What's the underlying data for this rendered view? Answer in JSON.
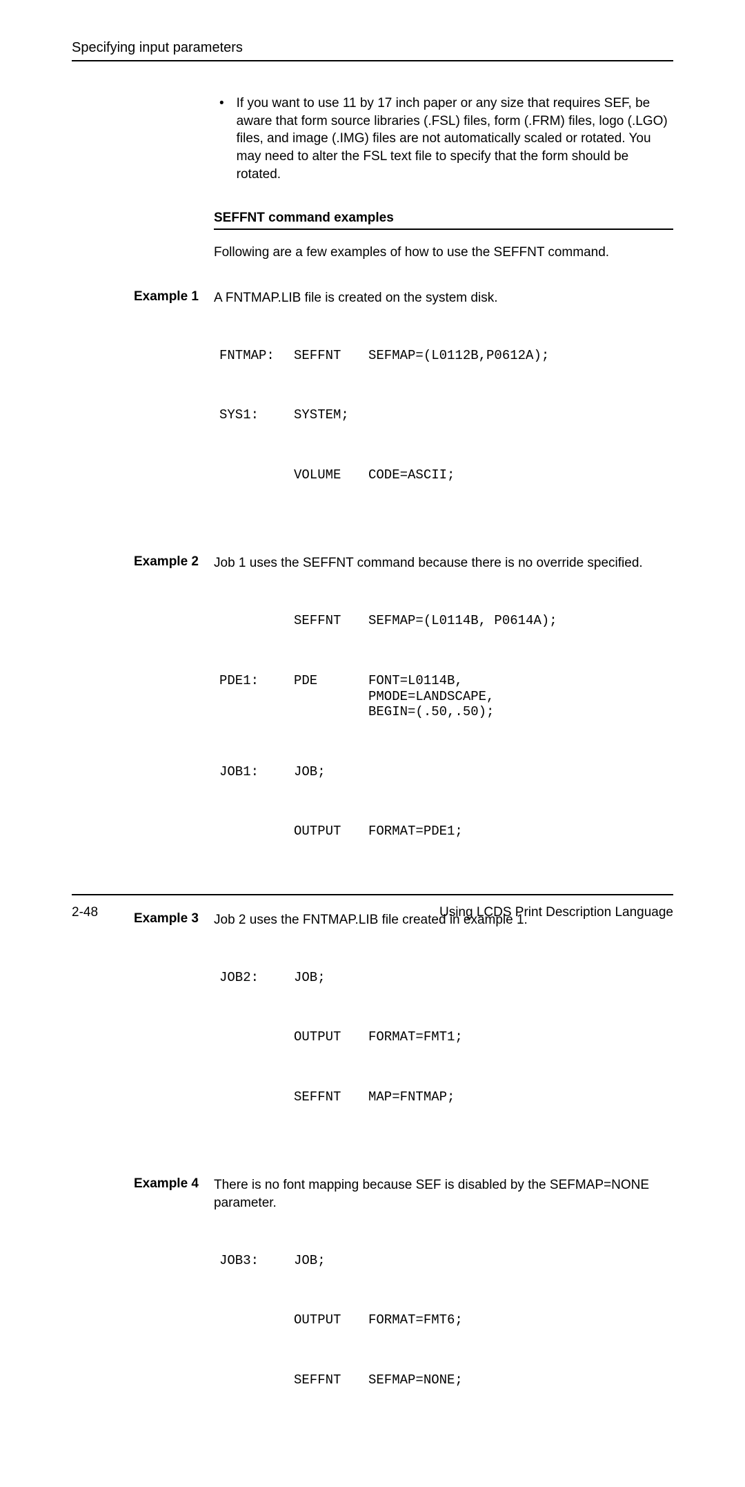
{
  "header": {
    "title": "Specifying input parameters"
  },
  "bullet": {
    "text": "If you want to use 11 by 17 inch paper or any size that requires SEF, be aware that form source libraries (.FSL) files, form (.FRM) files, logo (.LGO) files, and image (.IMG) files are not automatically scaled or rotated. You may need to alter the FSL text file to specify that the form should be rotated."
  },
  "section": {
    "heading": "SEFFNT command examples",
    "intro": "Following are a few examples of how to use the SEFFNT command."
  },
  "examples": {
    "ex1": {
      "label": "Example 1",
      "desc": "A FNTMAP.LIB file is created on the system disk.",
      "rows": [
        {
          "c1": "FNTMAP:",
          "c2": "SEFFNT",
          "c3": "SEFMAP=(L0112B,P0612A);"
        },
        {
          "c1": "SYS1:",
          "c2": "SYSTEM;",
          "c3": ""
        },
        {
          "c1": "",
          "c2": "VOLUME",
          "c3": "CODE=ASCII;"
        }
      ]
    },
    "ex2": {
      "label": "Example 2",
      "desc": "Job 1 uses the SEFFNT command because there is no override specified.",
      "rows": [
        {
          "c1": "",
          "c2": "SEFFNT",
          "c3": "SEFMAP=(L0114B, P0614A);"
        },
        {
          "c1": "PDE1:",
          "c2": "PDE",
          "c3": "FONT=L0114B,\nPMODE=LANDSCAPE,\nBEGIN=(.50,.50);"
        },
        {
          "c1": "JOB1:",
          "c2": "JOB;",
          "c3": ""
        },
        {
          "c1": "",
          "c2": "OUTPUT",
          "c3": "FORMAT=PDE1;"
        }
      ]
    },
    "ex3": {
      "label": "Example 3",
      "desc": "Job 2 uses the FNTMAP.LIB file created in example 1.",
      "rows": [
        {
          "c1": "JOB2:",
          "c2": "JOB;",
          "c3": ""
        },
        {
          "c1": "",
          "c2": "OUTPUT",
          "c3": "FORMAT=FMT1;"
        },
        {
          "c1": "",
          "c2": "SEFFNT",
          "c3": "MAP=FNTMAP;"
        }
      ]
    },
    "ex4": {
      "label": "Example 4",
      "desc": "There is no font mapping because SEF is disabled by the SEFMAP=NONE parameter.",
      "rows": [
        {
          "c1": "JOB3:",
          "c2": "JOB;",
          "c3": ""
        },
        {
          "c1": "",
          "c2": "OUTPUT",
          "c3": "FORMAT=FMT6;"
        },
        {
          "c1": "",
          "c2": "SEFFNT",
          "c3": "SEFMAP=NONE;"
        }
      ]
    }
  },
  "footer": {
    "page": "2-48",
    "doc": "Using LCDS Print Description Language"
  }
}
